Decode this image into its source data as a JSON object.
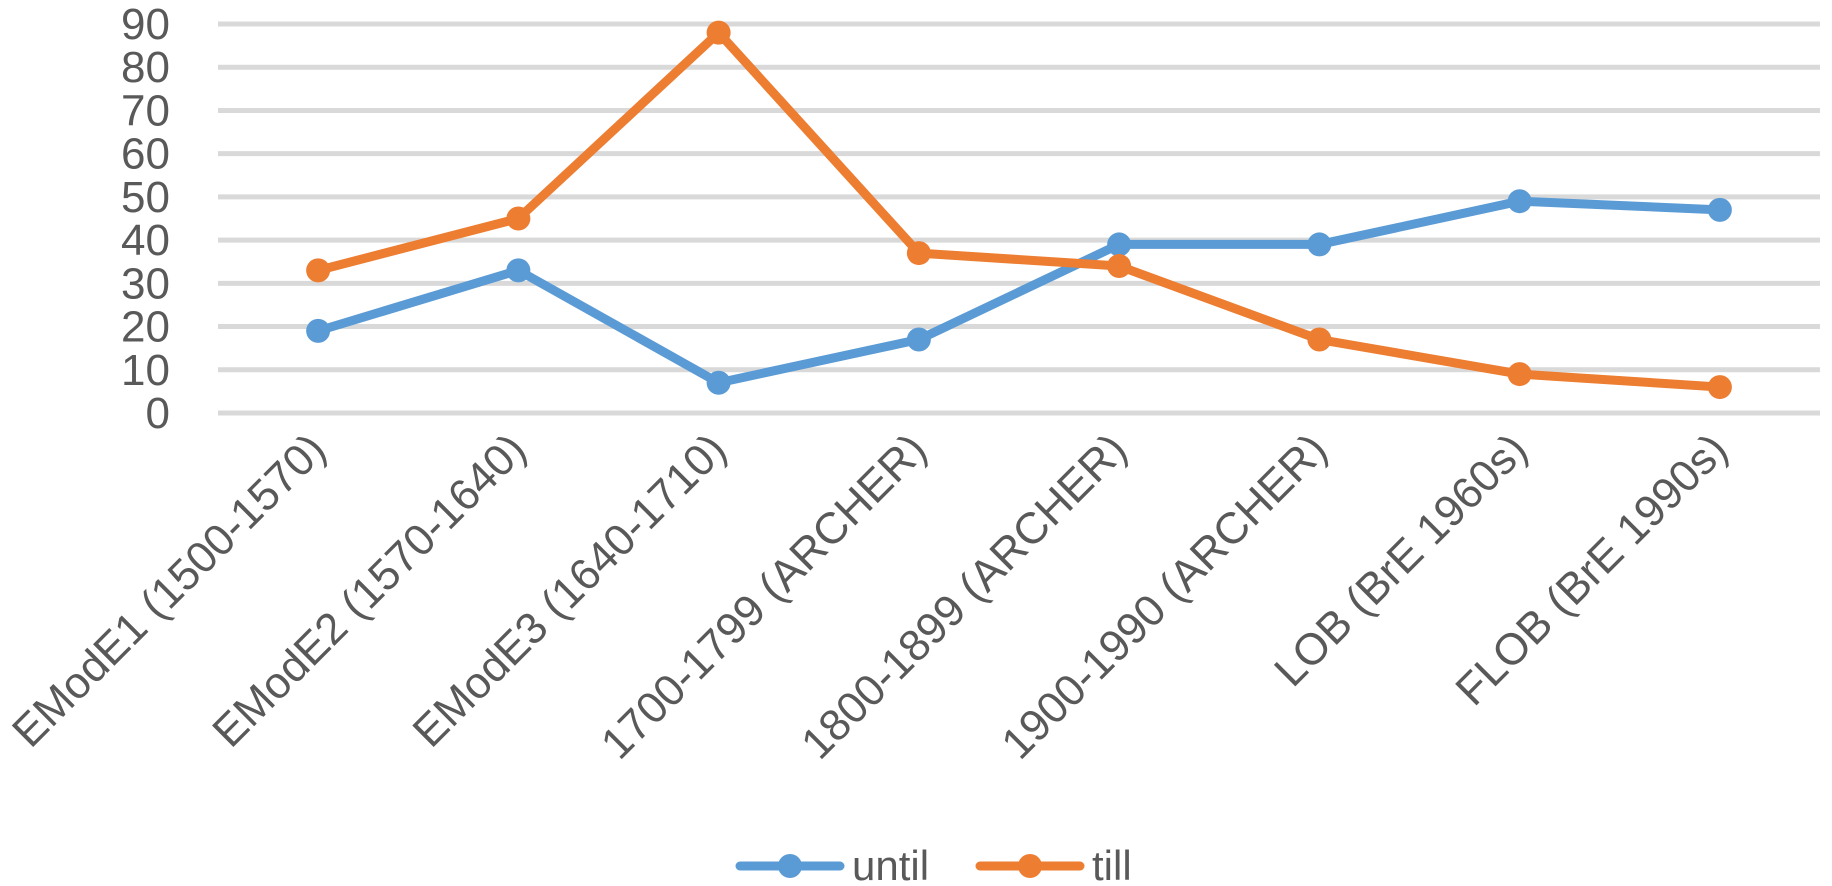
{
  "chart_data": {
    "type": "line",
    "categories": [
      "EModE1 (1500-1570)",
      "EModE2 (1570-1640)",
      "EModE3 (1640-1710)",
      "1700-1799 (ARCHER)",
      "1800-1899 (ARCHER)",
      "1900-1990 (ARCHER)",
      "LOB (BrE 1960s)",
      "FLOB (BrE 1990s)"
    ],
    "series": [
      {
        "name": "until",
        "color": "#5B9BD5",
        "values": [
          19,
          33,
          7,
          17,
          39,
          39,
          49,
          47
        ]
      },
      {
        "name": "till",
        "color": "#ED7D31",
        "values": [
          33,
          45,
          88,
          37,
          34,
          17,
          9,
          6
        ]
      }
    ],
    "y_ticks": [
      "0",
      "10",
      "20",
      "30",
      "40",
      "50",
      "60",
      "70",
      "80",
      "90"
    ],
    "ylim": [
      0,
      90
    ],
    "grid": true,
    "legend_position": "bottom-center",
    "title": "",
    "xlabel": "",
    "ylabel": ""
  },
  "colors": {
    "grid": "#D9D9D9",
    "text": "#595959"
  }
}
